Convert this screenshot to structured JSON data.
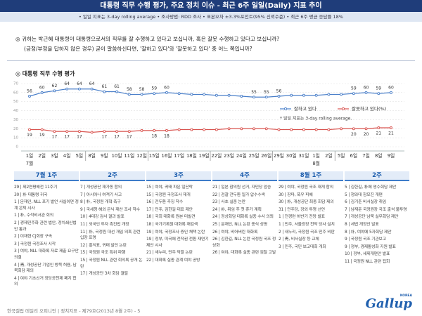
{
  "header": {
    "title": "대통령 직무 수행 평가, 주요 정치 이슈 - 최근 6주 일일(Daily) 지표 추이",
    "note": "• 일일 지표는 3-day rolling average   • 조사방법: RDD 조사   • 표본오차 ±3.3%포인트(95% 신뢰수준)   • 최근 6주 평균 응답률 18%"
  },
  "question": {
    "lines": [
      "◎ 귀하는 박근혜 대통령이 대통령으로서의 직무를 잘 수행하고 있다고 보십니까, 혹은 잘못 수행하고 있다고 보십니까?",
      "(긍정/부정을 답하지 않은 경우) 굳이 말씀하신다면, '잘하고 있다'와 '잘못하고 있다' 중 어느 쪽입니까?"
    ]
  },
  "chart_data": {
    "type": "line",
    "title": "◎ 대통령 직무 수행 평가",
    "categories": [
      "1일",
      "2일",
      "3일",
      "4일",
      "5일",
      "8일",
      "9일",
      "10일",
      "11일",
      "12일",
      "15일",
      "16일",
      "17일",
      "18일",
      "19일",
      "22일",
      "23일",
      "24일",
      "25일",
      "26일",
      "29일",
      "30일",
      "31일",
      "1일",
      "2일",
      "5일",
      "6일",
      "7일",
      "8일",
      "9일"
    ],
    "category_months": [
      "7월",
      null,
      null,
      null,
      null,
      null,
      null,
      null,
      null,
      null,
      null,
      null,
      null,
      null,
      null,
      null,
      null,
      null,
      null,
      null,
      null,
      null,
      null,
      "8월",
      null,
      null,
      null,
      null,
      null,
      null
    ],
    "series": [
      {
        "name": "잘하고 있다",
        "color": "#4a7fc9",
        "values": [
          56,
          60,
          62,
          64,
          64,
          64,
          61,
          61,
          58,
          58,
          59,
          60,
          59,
          58,
          58,
          57,
          57,
          56,
          55,
          55,
          56,
          57,
          57,
          57,
          58,
          58,
          59,
          60,
          59,
          60
        ],
        "value_labels": [
          "56",
          "60",
          "62",
          "64",
          "64",
          "64",
          "61",
          "61",
          "58",
          "58",
          "59",
          "60",
          null,
          null,
          null,
          null,
          null,
          null,
          "55",
          "55",
          "56",
          null,
          null,
          null,
          null,
          null,
          "59",
          "60",
          "59",
          "60"
        ]
      },
      {
        "name": "잘못하고 있다(%)",
        "color": "#d9534f",
        "values": [
          19,
          19,
          17,
          17,
          17,
          16,
          17,
          17,
          17,
          18,
          18,
          18,
          19,
          19,
          19,
          19,
          20,
          20,
          20,
          20,
          19,
          19,
          19,
          19,
          19,
          20,
          20,
          20,
          21,
          21
        ],
        "value_labels": [
          "19",
          "19",
          "17",
          "17",
          "17",
          null,
          "17",
          "17",
          "17",
          null,
          "18",
          "18",
          null,
          null,
          null,
          null,
          null,
          null,
          null,
          null,
          null,
          null,
          null,
          null,
          null,
          null,
          "20",
          "20",
          "21",
          "21"
        ]
      }
    ],
    "note": "* 일일 지표는 3-day rolling average.",
    "ylim": [
      0,
      70
    ],
    "yticks": [
      0,
      10,
      20,
      30,
      40,
      50,
      60,
      70
    ],
    "grid": true
  },
  "weeks": [
    {
      "label": "7월 1주",
      "items": [
        "29 | 제2연평해전 11주기",
        "30 | 朴 대통령 귀국",
        "1 | 문재인, NLL 포기 발언 사실이면 정계 은퇴 시사",
        "1 | 朴, 수석비서관 회의",
        "2 | 경제민주화 관련 법안, 정치쇄신법안 통과",
        "2 | 이재현 CJ회장 구속",
        "3 | 국정원 국정조사 시작",
        "3 | 여야, NLL 대화록 자료 제출 요구안 의결",
        "4 | 靑, 개성공단 기업인 방북 허용, 남북회담 제의",
        "4 | 여야 기초선거 정당공천제 폐지 합의"
      ]
    },
    {
      "label": "2주",
      "items": [
        "7 | 개성공단 재가동 합의",
        "7 | 아시아나 여객기 사고",
        "8 | 朴, 국정원 개혁 촉구",
        "9 | 국세청 해외 은닉 재산 조사 착수",
        "10 | 4대강 감사 결과 발표",
        "11 | 외국인 투자 촉진법 개정",
        "11 | 朴, 국정원 대선 개입 의혹 관련 입장 표명",
        "12 | 홍익표, 귀태 발언 논란",
        "15 | 국정원 국조 특위 파행",
        "15 | 국정원 NLL 관련 회의록 공개 논란",
        "17 | 개성공단 3차 회담 결렬"
      ]
    },
    {
      "label": "3주",
      "items": [
        "15 | 여야, 귀태 파문 일단락",
        "15 | 국정원 국정조사 재개",
        "16 | 전두환 추징 착수",
        "17 | 민주, 김한길 대표 제안",
        "18 | 국회 대화록 원본 미발견",
        "18 | 국가기록원 대화록 재검색",
        "19 | 여야, 국정조사 증인 채택 논란",
        "19 | 정부, 미국에 전작권 전환 재연기 제안 시사",
        "21 | 새누리, 민주 막말 논란",
        "22 | 대화록 실종 관계 여야 공방"
      ]
    },
    {
      "label": "4주",
      "items": [
        "21 | 일본 참의원 선거, 자민당 압승",
        "22 | 검찰 전두환 일가 압수수색",
        "23 | 사초 실종 논란",
        "24 | 朴, 취임 후 첫 휴가 계획",
        "24 | 정상회담 대화록 실종 수사 의뢰",
        "25 | 문재인, NLL 논란 종식 성명",
        "26 | 여야, 비어버린 대화록",
        "26 | 김한길, NLL 논란 국정원 국조 정상화",
        "26 | 여야, 대화록 실종 관련 검찰 고발"
      ]
    },
    {
      "label": "8월 1주",
      "items": [
        "29 | 여야, 국정원 국조 재개 합의",
        "30 | 장마, 폭우 피해",
        "30 | 朴, 개성공단 최종 회담 제의",
        "31 | 민주당, 장외 투쟁 선언",
        "1 | 전경련 하반기 전망 발표",
        "1 | 민주, 서울광장 천막 당사 설치",
        "2 | 새누리, 국정원 국조 민주 비판",
        "2 | 靑, 비서실장 등 교체",
        "3 | 민주, 국민 보고대회 개최"
      ]
    },
    {
      "label": "2주",
      "items": [
        "5 | 김한길, 朴에 영수회담 제안",
        "5 | 청와대 참모진 개편",
        "6 | 김기춘 비서실장 취임",
        "7 | 남재준 국정원장 국조 출석 불투명",
        "7 | 개성공단 남북 실무회담 제안",
        "8 | 세법 개정안 발표",
        "8 | 朴, 여야에 5자회담 제안",
        "9 | 국정원 국조 기관보고",
        "9 | 정부, 경제활성화 지원 발표",
        "10 | 정부, 세제개편안 발표",
        "11 | 국정원 NLL 관련 집회"
      ]
    }
  ],
  "footer": {
    "text": "한국갤럽 데일리 오피니언 | 정치지표 - 제79호(2013년 8월 2주) - 5"
  },
  "logo": {
    "text": "Gallup",
    "sub": "KOREA"
  }
}
